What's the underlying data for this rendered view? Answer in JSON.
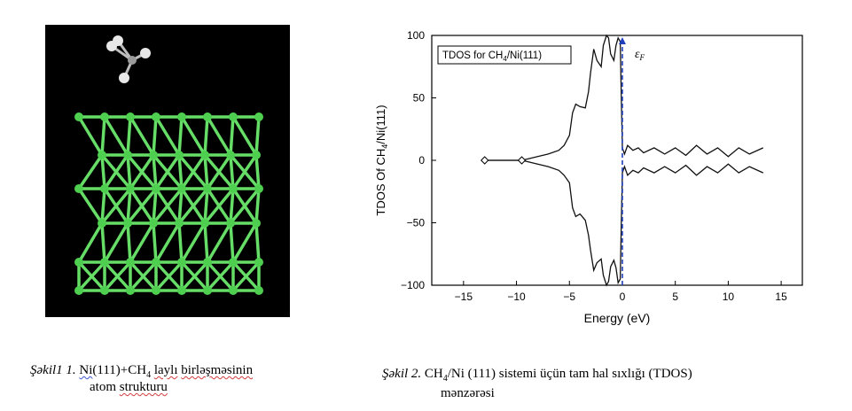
{
  "figure1": {
    "caption_label": "Şəkil1 1.",
    "caption_text_parts": [
      "Ni",
      "(111)+CH",
      "4",
      " ",
      "laylı",
      " ",
      "birləşməsinin"
    ],
    "caption_line2_parts": [
      "atom",
      " ",
      "strukturu"
    ],
    "colors": {
      "background": "#000000",
      "atom": "#4fcf4f",
      "bond": "#66dd66",
      "hydrogen": "#e8e8e8"
    }
  },
  "figure2": {
    "caption_label": "Şəkil 2.",
    "caption_text": "CH",
    "caption_sub": "4",
    "caption_rest": "/Ni (111) sistemi üçün tam hal sıxlığı (TDOS)",
    "caption_line2": "mənzərəsi"
  },
  "chart_data": {
    "type": "line",
    "legend_prefix": "TDOS for CH",
    "legend_sub": "4",
    "legend_suffix": "/Ni(111)",
    "xlabel": "Energy (eV)",
    "ylabel_prefix": "TDOS Of CH",
    "ylabel_sub": "4",
    "ylabel_suffix": "/Ni(111)",
    "fermi_label": "ε",
    "fermi_sub": "F",
    "xlim": [
      -18,
      17
    ],
    "ylim": [
      -100,
      100
    ],
    "x_ticks": [
      "−15",
      "−10",
      "−5",
      "0",
      "5",
      "10",
      "15"
    ],
    "x_tick_values": [
      -15,
      -10,
      -5,
      0,
      5,
      10,
      15
    ],
    "y_ticks": [
      "100",
      "50",
      "0",
      "−50",
      "−100"
    ],
    "y_tick_values": [
      100,
      50,
      0,
      -50,
      -100
    ],
    "fermi_x": 0,
    "series": [
      {
        "x": [
          -13,
          -11,
          -9.5,
          -9,
          -8,
          -7,
          -6,
          -5.5,
          -5,
          -4.7,
          -4.4,
          -4,
          -3.5,
          -3.2,
          -3,
          -2.7,
          -2.4,
          -2,
          -1.8,
          -1.5,
          -1.3,
          -1.1,
          -0.8,
          -0.6,
          -0.4,
          -0.2,
          -0.1,
          0,
          0.2,
          0.5,
          1,
          1.5,
          2,
          3,
          4,
          5,
          6,
          7,
          8,
          9,
          10,
          11,
          12,
          13.3
        ],
        "values": [
          0,
          0,
          0,
          1,
          3,
          5,
          8,
          12,
          20,
          38,
          45,
          43,
          42,
          55,
          70,
          89,
          80,
          75,
          92,
          100,
          98,
          85,
          80,
          92,
          98,
          95,
          50,
          10,
          5,
          12,
          8,
          10,
          6,
          10,
          5,
          10,
          4,
          12,
          5,
          10,
          3,
          10,
          5,
          10
        ]
      },
      {
        "x": [
          -13,
          -11,
          -9.5,
          -9,
          -8,
          -7,
          -6,
          -5.5,
          -5,
          -4.7,
          -4.4,
          -4,
          -3.5,
          -3.2,
          -3,
          -2.7,
          -2.4,
          -2,
          -1.8,
          -1.5,
          -1.3,
          -1.1,
          -0.8,
          -0.6,
          -0.4,
          -0.2,
          -0.1,
          0,
          0.2,
          0.5,
          1,
          1.5,
          2,
          3,
          4,
          5,
          6,
          7,
          8,
          9,
          10,
          11,
          12,
          13.3
        ],
        "values": [
          0,
          0,
          0,
          -1,
          -3,
          -5,
          -8,
          -12,
          -18,
          -38,
          -45,
          -43,
          -48,
          -60,
          -72,
          -88,
          -82,
          -79,
          -92,
          -100,
          -97,
          -85,
          -80,
          -86,
          -98,
          -95,
          -50,
          -10,
          -5,
          -12,
          -8,
          -10,
          -6,
          -10,
          -5,
          -10,
          -4,
          -12,
          -5,
          -10,
          -3,
          -10,
          -5,
          -10
        ]
      }
    ],
    "markers_x": [
      -13,
      -9.5
    ],
    "colors": {
      "line": "#111111",
      "fermi": "#1f3fbf"
    }
  }
}
